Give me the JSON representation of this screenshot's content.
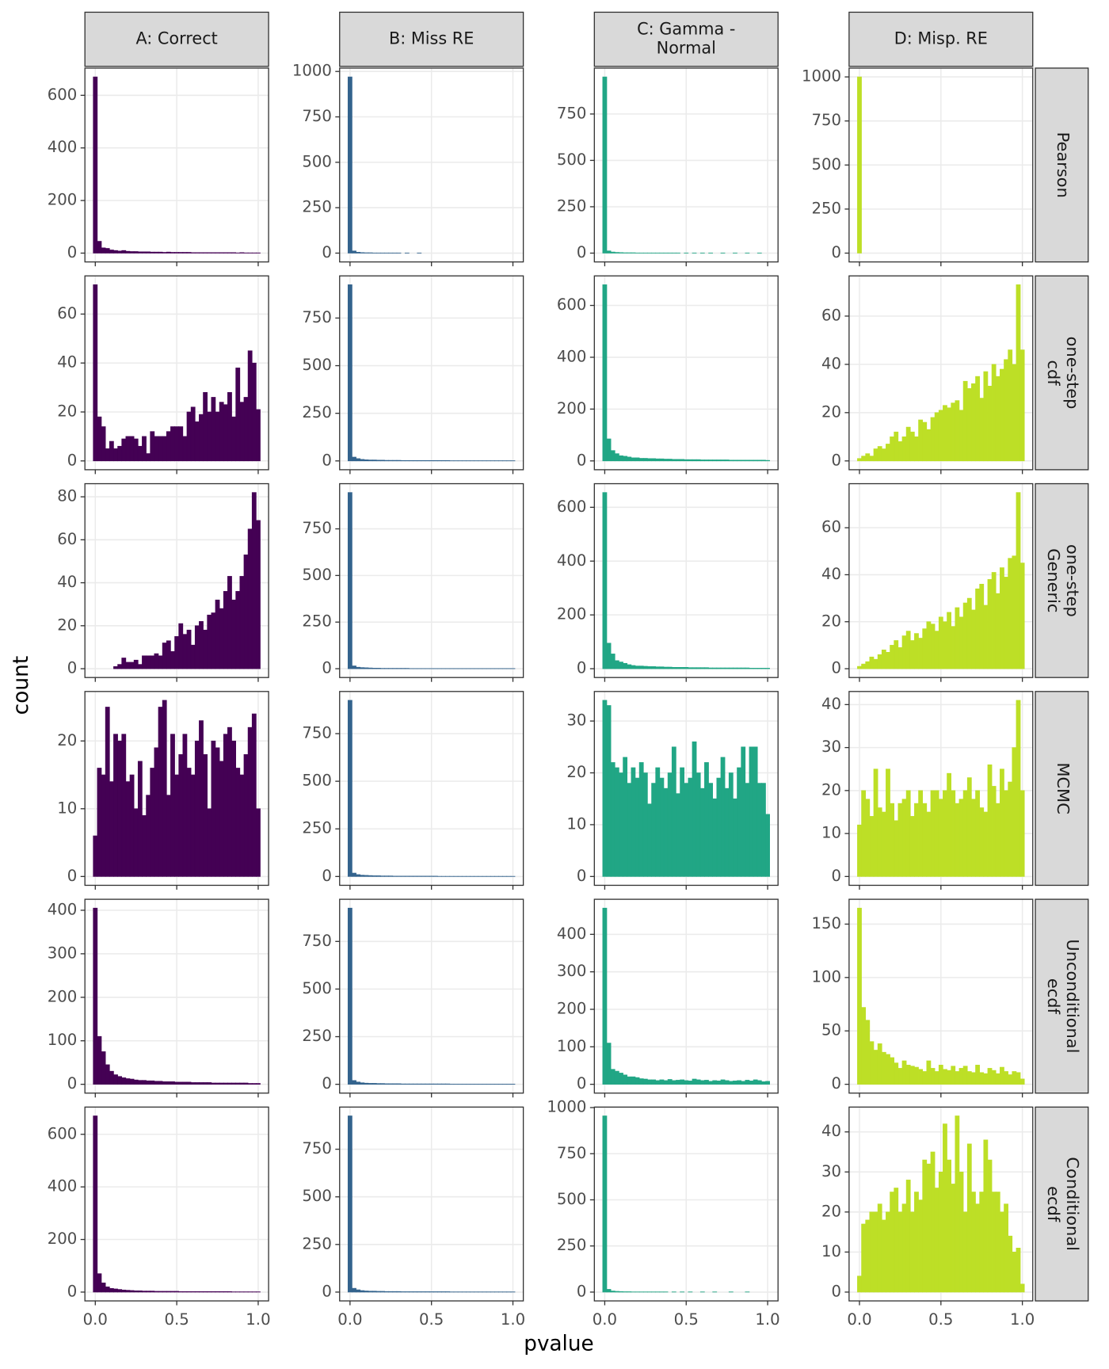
{
  "chart_data": {
    "type": "facet_histogram",
    "x_label": "pvalue",
    "y_label": "count",
    "columns": [
      [
        "A: Correct"
      ],
      [
        "B: Miss RE"
      ],
      [
        "C: Gamma -",
        "Normal"
      ],
      [
        "D: Misp. RE"
      ]
    ],
    "rows": [
      [
        "Pearson"
      ],
      [
        "one-step",
        "cdf"
      ],
      [
        "one-step",
        "Generic"
      ],
      [
        "MCMC"
      ],
      [
        "Unconditional",
        "ecdf"
      ],
      [
        "Conditional",
        "ecdf"
      ]
    ],
    "colors": [
      "#440154",
      "#33638d",
      "#21a685",
      "#bddf26"
    ],
    "grid": true,
    "bins": [
      -0.0125,
      0.0125,
      0.0375,
      0.0625,
      0.0875,
      0.1125,
      0.1375,
      0.1625,
      0.1875,
      0.2125,
      0.2375,
      0.2625,
      0.2875,
      0.3125,
      0.3375,
      0.3625,
      0.3875,
      0.4125,
      0.4375,
      0.4625,
      0.4875,
      0.5125,
      0.5375,
      0.5625,
      0.5875,
      0.6125,
      0.6375,
      0.6625,
      0.6875,
      0.7125,
      0.7375,
      0.7625,
      0.7875,
      0.8125,
      0.8375,
      0.8625,
      0.8875,
      0.9125,
      0.9375,
      0.9625,
      0.9875,
      1.0125
    ],
    "xlim": [
      -0.06375,
      1.06375
    ],
    "xticks": [
      {
        "value": 0,
        "label": "0.0"
      },
      0.5,
      {
        "value": 1,
        "label": "1.0"
      }
    ],
    "panels": [
      {
        "values": [
          670,
          45,
          20,
          18,
          12,
          10,
          8,
          10,
          7,
          6,
          6,
          5,
          5,
          5,
          4,
          4,
          4,
          3,
          4,
          3,
          3,
          3,
          3,
          3,
          2,
          2,
          2,
          2,
          2,
          2,
          2,
          2,
          2,
          2,
          2,
          1,
          2,
          1,
          1,
          1,
          1
        ],
        "ylim": [
          -33.5,
          703.5
        ],
        "yticks": [
          0,
          200,
          400,
          600
        ]
      },
      {
        "values": [
          970,
          12,
          5,
          3,
          2,
          2,
          1,
          1,
          1,
          1,
          1,
          1,
          1,
          0,
          1,
          0,
          0,
          1,
          0,
          0,
          0,
          0,
          0,
          0,
          0,
          0,
          0,
          0,
          0,
          0,
          0,
          0,
          0,
          0,
          0,
          0,
          0,
          0,
          0,
          0,
          0
        ],
        "ylim": [
          -48.5,
          1018.5
        ],
        "yticks": [
          0,
          250,
          500,
          750,
          1000
        ]
      },
      {
        "values": [
          950,
          12,
          6,
          4,
          3,
          2,
          2,
          2,
          1,
          1,
          1,
          1,
          1,
          1,
          1,
          1,
          1,
          1,
          1,
          0,
          1,
          0,
          1,
          0,
          1,
          0,
          1,
          0,
          0,
          1,
          0,
          0,
          1,
          0,
          0,
          1,
          0,
          0,
          1,
          0,
          0
        ],
        "ylim": [
          -47.5,
          997.5
        ],
        "yticks": [
          0,
          250,
          500,
          750
        ]
      },
      {
        "values": [
          1000,
          0,
          0,
          0,
          0,
          0,
          0,
          0,
          0,
          0,
          0,
          0,
          0,
          0,
          0,
          0,
          0,
          0,
          0,
          0,
          0,
          0,
          0,
          0,
          0,
          0,
          0,
          0,
          0,
          0,
          0,
          0,
          0,
          0,
          0,
          0,
          0,
          0,
          0,
          0,
          0
        ],
        "ylim": [
          -50,
          1050
        ],
        "yticks": [
          0,
          250,
          500,
          750,
          1000
        ]
      },
      {
        "values": [
          72,
          18,
          14,
          5,
          8,
          5,
          6,
          9,
          10,
          10,
          9,
          6,
          10,
          3,
          12,
          10,
          10,
          10,
          12,
          14,
          14,
          14,
          10,
          20,
          22,
          16,
          19,
          28,
          20,
          26,
          20,
          24,
          23,
          28,
          18,
          38,
          24,
          26,
          45,
          40,
          21
        ],
        "ylim": [
          -3.6,
          75.6
        ],
        "yticks": [
          0,
          20,
          40,
          60
        ]
      },
      {
        "values": [
          925,
          20,
          12,
          8,
          6,
          5,
          5,
          4,
          4,
          3,
          3,
          3,
          3,
          2,
          2,
          2,
          2,
          2,
          2,
          2,
          2,
          2,
          2,
          2,
          2,
          1,
          1,
          1,
          1,
          1,
          1,
          1,
          1,
          1,
          1,
          1,
          1,
          1,
          1,
          1,
          1
        ],
        "ylim": [
          -46.25,
          971.25
        ],
        "yticks": [
          0,
          250,
          500,
          750
        ]
      },
      {
        "values": [
          680,
          85,
          40,
          28,
          20,
          18,
          15,
          12,
          12,
          10,
          10,
          9,
          9,
          8,
          8,
          7,
          7,
          6,
          6,
          6,
          5,
          5,
          5,
          5,
          4,
          4,
          4,
          4,
          4,
          4,
          4,
          3,
          3,
          3,
          3,
          3,
          3,
          3,
          3,
          3,
          2
        ],
        "ylim": [
          -34,
          714
        ],
        "yticks": [
          0,
          200,
          400,
          600
        ]
      },
      {
        "values": [
          1,
          2,
          3,
          2,
          5,
          6,
          5,
          7,
          10,
          12,
          8,
          10,
          14,
          12,
          10,
          17,
          16,
          13,
          18,
          20,
          21,
          23,
          22,
          24,
          25,
          21,
          33,
          30,
          32,
          35,
          26,
          37,
          31,
          40,
          35,
          38,
          42,
          46,
          40,
          73,
          46
        ],
        "ylim": [
          -3.65,
          76.65
        ],
        "yticks": [
          0,
          20,
          40,
          60
        ]
      },
      {
        "values": [
          0,
          0,
          0,
          0,
          0,
          1,
          2,
          5,
          3,
          3,
          4,
          2,
          6,
          6,
          6,
          7,
          6,
          12,
          13,
          8,
          15,
          21,
          16,
          18,
          11,
          20,
          22,
          18,
          25,
          26,
          32,
          28,
          36,
          43,
          32,
          36,
          43,
          53,
          65,
          82,
          69
        ],
        "ylim": [
          -4.1,
          86.1
        ],
        "yticks": [
          0,
          20,
          40,
          60,
          80
        ]
      },
      {
        "values": [
          945,
          15,
          8,
          6,
          5,
          4,
          3,
          3,
          2,
          2,
          2,
          2,
          2,
          2,
          2,
          1,
          1,
          1,
          1,
          1,
          1,
          1,
          1,
          1,
          1,
          1,
          1,
          1,
          1,
          1,
          1,
          1,
          1,
          1,
          1,
          1,
          1,
          1,
          1,
          1,
          1
        ],
        "ylim": [
          -47.25,
          992.25
        ],
        "yticks": [
          0,
          250,
          500,
          750
        ]
      },
      {
        "values": [
          655,
          95,
          55,
          30,
          25,
          20,
          15,
          12,
          10,
          10,
          9,
          8,
          8,
          7,
          7,
          6,
          6,
          5,
          5,
          5,
          5,
          4,
          4,
          4,
          4,
          4,
          3,
          3,
          3,
          3,
          3,
          3,
          3,
          3,
          3,
          3,
          2,
          2,
          2,
          2,
          2
        ],
        "ylim": [
          -32.75,
          687.75
        ],
        "yticks": [
          0,
          200,
          400,
          600
        ]
      },
      {
        "values": [
          1,
          2,
          3,
          5,
          4,
          6,
          8,
          7,
          10,
          12,
          9,
          14,
          16,
          12,
          15,
          13,
          17,
          20,
          19,
          16,
          22,
          20,
          24,
          18,
          26,
          22,
          28,
          30,
          25,
          34,
          36,
          27,
          38,
          41,
          32,
          43,
          39,
          47,
          48,
          75,
          45
        ],
        "ylim": [
          -3.75,
          78.75
        ],
        "yticks": [
          0,
          20,
          40,
          60
        ]
      },
      {
        "values": [
          6,
          16,
          15,
          25,
          14,
          21,
          20,
          21,
          14,
          15,
          10,
          17,
          9,
          12,
          16,
          19,
          25,
          26,
          12,
          21,
          15,
          18,
          21,
          16,
          15,
          20,
          23,
          18,
          10,
          20,
          19,
          17,
          21,
          22,
          20,
          16,
          15,
          18,
          22,
          24,
          10
        ],
        "ylim": [
          -1.3,
          27.3
        ],
        "yticks": [
          0,
          10,
          20
        ]
      },
      {
        "values": [
          925,
          18,
          10,
          7,
          6,
          5,
          4,
          4,
          3,
          3,
          3,
          2,
          2,
          2,
          2,
          2,
          2,
          2,
          2,
          2,
          2,
          2,
          1,
          1,
          1,
          1,
          1,
          1,
          1,
          1,
          1,
          1,
          1,
          1,
          1,
          1,
          1,
          1,
          1,
          1,
          1
        ],
        "ylim": [
          -46.25,
          971.25
        ],
        "yticks": [
          0,
          250,
          500,
          750
        ]
      },
      {
        "values": [
          34,
          33,
          22,
          21,
          20,
          23,
          18,
          21,
          19,
          22,
          20,
          14,
          18,
          21,
          19,
          17,
          20,
          25,
          16,
          21,
          18,
          19,
          26,
          20,
          17,
          22,
          18,
          15,
          19,
          23,
          17,
          20,
          15,
          21,
          25,
          18,
          25,
          25,
          18,
          18,
          12
        ],
        "ylim": [
          -1.7,
          35.7
        ],
        "yticks": [
          0,
          10,
          20,
          30
        ]
      },
      {
        "values": [
          12,
          20,
          18,
          14,
          25,
          16,
          15,
          25,
          17,
          13,
          17,
          18,
          20,
          14,
          17,
          20,
          17,
          15,
          20,
          20,
          18,
          20,
          24,
          20,
          17,
          18,
          20,
          23,
          18,
          20,
          16,
          15,
          26,
          21,
          17,
          25,
          20,
          22,
          30,
          41,
          20
        ],
        "ylim": [
          -2.05,
          43.05
        ],
        "yticks": [
          0,
          10,
          20,
          30,
          40
        ]
      },
      {
        "values": [
          405,
          110,
          75,
          45,
          30,
          22,
          18,
          15,
          13,
          12,
          10,
          9,
          9,
          8,
          8,
          7,
          7,
          6,
          6,
          6,
          5,
          5,
          5,
          5,
          4,
          4,
          4,
          4,
          4,
          3,
          3,
          3,
          3,
          3,
          3,
          3,
          3,
          3,
          2,
          2,
          2
        ],
        "ylim": [
          -20.25,
          425.25
        ],
        "yticks": [
          0,
          100,
          200,
          300,
          400
        ]
      },
      {
        "values": [
          925,
          20,
          12,
          8,
          6,
          5,
          5,
          4,
          4,
          3,
          3,
          3,
          3,
          2,
          2,
          2,
          2,
          2,
          2,
          2,
          2,
          2,
          2,
          2,
          2,
          1,
          1,
          1,
          1,
          1,
          1,
          1,
          1,
          1,
          1,
          1,
          1,
          1,
          1,
          1,
          1
        ],
        "ylim": [
          -46.25,
          971.25
        ],
        "yticks": [
          0,
          250,
          500,
          750
        ]
      },
      {
        "values": [
          470,
          110,
          40,
          35,
          30,
          25,
          20,
          20,
          18,
          15,
          14,
          12,
          12,
          10,
          12,
          10,
          13,
          10,
          11,
          12,
          10,
          9,
          14,
          12,
          10,
          11,
          8,
          10,
          9,
          12,
          10,
          8,
          9,
          10,
          8,
          11,
          9,
          12,
          10,
          7,
          8
        ],
        "ylim": [
          -23.5,
          493.5
        ],
        "yticks": [
          0,
          100,
          200,
          300,
          400
        ]
      },
      {
        "values": [
          165,
          72,
          60,
          40,
          32,
          38,
          30,
          28,
          25,
          20,
          15,
          22,
          18,
          17,
          16,
          14,
          12,
          22,
          15,
          12,
          18,
          14,
          13,
          17,
          12,
          15,
          17,
          12,
          11,
          18,
          11,
          10,
          15,
          13,
          10,
          16,
          12,
          9,
          12,
          11,
          5
        ],
        "ylim": [
          -8.25,
          173.25
        ],
        "yticks": [
          0,
          50,
          100,
          150
        ]
      },
      {
        "values": [
          670,
          70,
          35,
          20,
          14,
          12,
          10,
          8,
          7,
          6,
          5,
          5,
          4,
          4,
          4,
          3,
          3,
          3,
          3,
          3,
          3,
          2,
          2,
          2,
          2,
          2,
          2,
          2,
          2,
          2,
          2,
          2,
          2,
          2,
          1,
          1,
          1,
          1,
          1,
          1,
          1
        ],
        "ylim": [
          -33.5,
          703.5
        ],
        "yticks": [
          0,
          200,
          400,
          600
        ]
      },
      {
        "values": [
          925,
          20,
          12,
          8,
          6,
          5,
          5,
          4,
          4,
          3,
          3,
          3,
          3,
          2,
          2,
          2,
          2,
          2,
          2,
          2,
          2,
          2,
          2,
          2,
          2,
          1,
          1,
          1,
          1,
          1,
          1,
          1,
          1,
          1,
          1,
          1,
          1,
          1,
          1,
          1,
          1
        ],
        "ylim": [
          -46.25,
          971.25
        ],
        "yticks": [
          0,
          250,
          500,
          750
        ]
      },
      {
        "values": [
          955,
          15,
          6,
          4,
          3,
          2,
          2,
          1,
          1,
          1,
          1,
          1,
          1,
          1,
          1,
          1,
          0,
          1,
          0,
          1,
          0,
          1,
          0,
          0,
          1,
          0,
          0,
          1,
          0,
          0,
          0,
          1,
          0,
          0,
          0,
          1,
          0,
          0,
          0,
          0,
          0
        ],
        "ylim": [
          -47.75,
          1002.75
        ],
        "yticks": [
          0,
          250,
          500,
          750,
          1000
        ]
      },
      {
        "values": [
          4,
          17,
          18,
          20,
          20,
          22,
          18,
          20,
          25,
          26,
          20,
          22,
          28,
          20,
          25,
          23,
          33,
          32,
          35,
          26,
          30,
          42,
          33,
          27,
          44,
          30,
          20,
          37,
          25,
          22,
          25,
          38,
          33,
          25,
          25,
          20,
          22,
          14,
          10,
          11,
          2
        ],
        "ylim": [
          -2.2,
          46.2
        ],
        "yticks": [
          0,
          10,
          20,
          30,
          40
        ]
      }
    ]
  }
}
